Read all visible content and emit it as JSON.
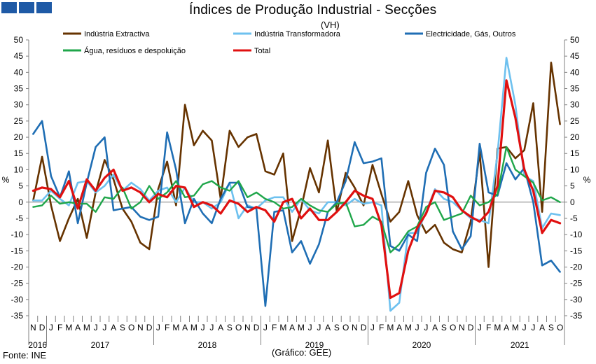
{
  "header": {
    "title": "Índices de Produção Industrial - Secções",
    "subtitle": "(VH)"
  },
  "footer": {
    "source": "Fonte: INE",
    "credit": "(Gráfico: GEE)"
  },
  "colors": {
    "logo": "#1f5aa6",
    "grid": "#d9d9d9"
  },
  "chart_data": {
    "type": "line",
    "ylabel_left": "%",
    "ylabel_right": "%",
    "ylim": [
      -35,
      50
    ],
    "yticks": [
      -35,
      -30,
      -25,
      -20,
      -15,
      -10,
      -5,
      0,
      5,
      10,
      15,
      20,
      25,
      30,
      35,
      40,
      45,
      50
    ],
    "grid": false,
    "legend_position": "top",
    "x": [
      "2016-11",
      "2016-12",
      "2017-01",
      "2017-02",
      "2017-03",
      "2017-04",
      "2017-05",
      "2017-06",
      "2017-07",
      "2017-08",
      "2017-09",
      "2017-10",
      "2017-11",
      "2017-12",
      "2018-01",
      "2018-02",
      "2018-03",
      "2018-04",
      "2018-05",
      "2018-06",
      "2018-07",
      "2018-08",
      "2018-09",
      "2018-10",
      "2018-11",
      "2018-12",
      "2019-01",
      "2019-02",
      "2019-03",
      "2019-04",
      "2019-05",
      "2019-06",
      "2019-07",
      "2019-08",
      "2019-09",
      "2019-10",
      "2019-11",
      "2019-12",
      "2020-01",
      "2020-02",
      "2020-03",
      "2020-04",
      "2020-05",
      "2020-06",
      "2020-07",
      "2020-08",
      "2020-09",
      "2020-10",
      "2020-11",
      "2020-12",
      "2021-01",
      "2021-02",
      "2021-03",
      "2021-04",
      "2021-05",
      "2021-06",
      "2021-07",
      "2021-08",
      "2021-09",
      "2021-10"
    ],
    "x_tick_labels": [
      "N",
      "D",
      "J",
      "F",
      "M",
      "A",
      "M",
      "J",
      "J",
      "A",
      "S",
      "O",
      "N",
      "D",
      "J",
      "F",
      "M",
      "A",
      "M",
      "J",
      "J",
      "A",
      "S",
      "O",
      "N",
      "D",
      "J",
      "F",
      "M",
      "A",
      "M",
      "J",
      "J",
      "A",
      "S",
      "O",
      "N",
      "D",
      "J",
      "F",
      "M",
      "A",
      "M",
      "J",
      "J",
      "A",
      "S",
      "O",
      "N",
      "D",
      "J",
      "F",
      "M",
      "A",
      "M",
      "J",
      "J",
      "A",
      "S",
      "O"
    ],
    "year_groups": [
      {
        "label": "2016",
        "start": 0,
        "end": 1
      },
      {
        "label": "2017",
        "start": 2,
        "end": 13
      },
      {
        "label": "2018",
        "start": 14,
        "end": 25
      },
      {
        "label": "2019",
        "start": 26,
        "end": 37
      },
      {
        "label": "2020",
        "start": 38,
        "end": 49
      },
      {
        "label": "2021",
        "start": 50,
        "end": 59
      }
    ],
    "series": [
      {
        "name": "Indústria Extractiva",
        "color": "#663300",
        "width": 2.6,
        "values": [
          0.5,
          14,
          -1,
          -12,
          -5,
          1,
          -11,
          3,
          13,
          7,
          -2,
          -6,
          -12.5,
          -14.5,
          4,
          12.5,
          -1,
          30,
          17.5,
          22,
          19,
          1,
          22,
          17,
          20,
          21,
          9.5,
          8.5,
          15,
          -12,
          -2,
          10.5,
          3,
          19,
          -3,
          9,
          4.5,
          -1,
          11.5,
          2.5,
          -6,
          -3,
          6.5,
          -4,
          -9.5,
          -7,
          -12.5,
          -14.5,
          -15.5,
          -6,
          15.5,
          -20,
          16.5,
          17,
          13.5,
          16,
          30.5,
          -3,
          43,
          24
        ]
      },
      {
        "name": "Indústria Transformadora",
        "color": "#6ec1ef",
        "width": 2.6,
        "values": [
          0.5,
          0.5,
          3.5,
          1,
          -1,
          6,
          6.5,
          3,
          5,
          8.5,
          3.5,
          6,
          4,
          0.5,
          3.5,
          4.5,
          0,
          4.5,
          0,
          0,
          -2,
          0,
          6,
          -5,
          -1,
          -2,
          0.5,
          1.5,
          1.5,
          -3,
          1,
          -2.5,
          -3.5,
          0,
          0,
          -1,
          1,
          -0.5,
          0,
          -1,
          -33.5,
          -31,
          -9.5,
          -9.5,
          -3,
          4,
          1,
          0,
          -2.5,
          -5,
          -5.5,
          -6.5,
          15,
          44.5,
          30,
          8,
          6.5,
          -8,
          -3.5,
          -4
        ]
      },
      {
        "name": "Electricidade, Gás, Outros",
        "color": "#1f6eb4",
        "width": 2.6,
        "values": [
          21,
          25,
          8,
          1.5,
          9.5,
          -6.5,
          6,
          17,
          20,
          -2.5,
          -2,
          -1.5,
          -4.5,
          -5.5,
          -4.5,
          21.5,
          10,
          -6.5,
          1,
          -3.5,
          -6.5,
          1,
          6,
          6,
          -1.5,
          -2,
          -32,
          -3,
          -2.5,
          -15.5,
          -12,
          -19,
          -13,
          -3,
          0,
          6.5,
          18.5,
          12,
          12.5,
          13.5,
          -13.5,
          -15,
          -10,
          -12,
          9,
          16.5,
          11.5,
          -9,
          -14.5,
          -10.5,
          18,
          3,
          2,
          12,
          7,
          10.5,
          0,
          -19.5,
          -18,
          -21.5
        ]
      },
      {
        "name": "Água, resíduos e despoluição",
        "color": "#1fa64a",
        "width": 2.4,
        "values": [
          -1.5,
          -1,
          2,
          -0.5,
          0,
          -0.5,
          -0.5,
          -3,
          1.5,
          1,
          4.5,
          -2,
          0,
          5,
          1,
          3,
          6.5,
          1.5,
          2,
          5.5,
          6.5,
          4.5,
          3.5,
          6.5,
          1.5,
          3,
          1,
          0,
          -2,
          -1.5,
          1,
          -1,
          -2.5,
          -3,
          -0.5,
          0,
          -7.5,
          -7,
          -4.5,
          -6,
          -15.5,
          -13,
          -9,
          -7.5,
          -1.5,
          0,
          -5.5,
          -4.5,
          -3.5,
          2,
          -1,
          0,
          2.5,
          17,
          10,
          8,
          6,
          0.5,
          1.5,
          0
        ]
      },
      {
        "name": "Total",
        "color": "#e01010",
        "width": 3.2,
        "values": [
          3.5,
          4.5,
          4,
          1.5,
          6.5,
          -2,
          7,
          3.5,
          7.5,
          10,
          3.5,
          4.5,
          3,
          0,
          2.5,
          1.5,
          5,
          4.5,
          -1.5,
          0,
          -1,
          -3.5,
          0.5,
          -0.5,
          -3,
          -1.5,
          -2.5,
          -6,
          0,
          1,
          -5,
          -2,
          -5.5,
          -5.5,
          -3,
          0,
          3.5,
          2,
          1,
          -7,
          -29.5,
          -28,
          -15,
          -8,
          -3.5,
          3.5,
          3,
          1.5,
          -2.5,
          -4.5,
          -6,
          -3,
          5,
          37.5,
          26,
          10,
          3.5,
          -9.5,
          -5.5,
          -6.5
        ]
      }
    ],
    "legend_rows": [
      [
        0,
        1,
        2
      ],
      [
        3,
        4
      ]
    ]
  }
}
